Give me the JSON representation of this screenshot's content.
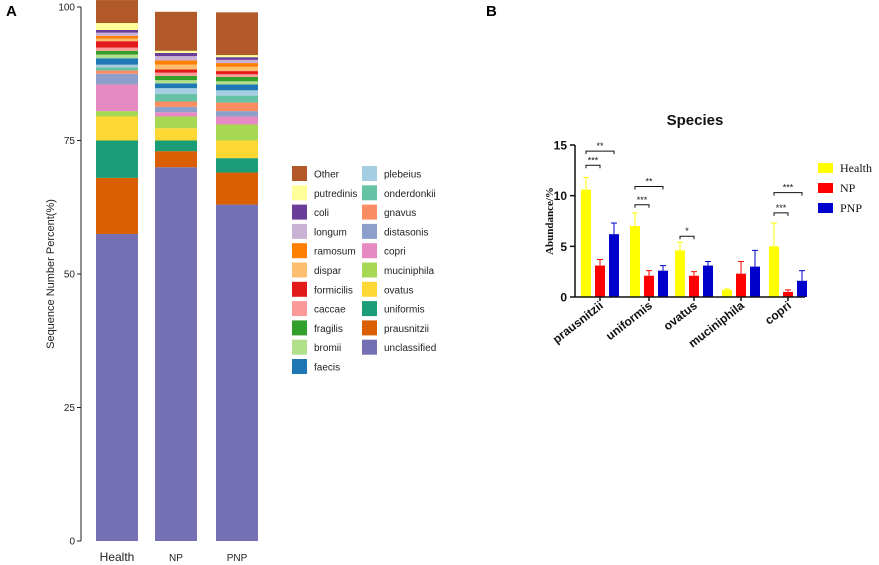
{
  "panel_labels": [
    "A",
    "B"
  ],
  "chart_data": [
    {
      "type": "bar",
      "stacked": true,
      "ylabel": "Sequence Number Percent(%)",
      "ylim": [
        0,
        100
      ],
      "yticks": [
        0,
        25,
        50,
        75,
        100
      ],
      "categories": [
        "Health",
        "NP",
        "PNP"
      ],
      "series": [
        {
          "name": "unclassified",
          "color": "#7570b3",
          "values": [
            57.5,
            70.0,
            63.0
          ]
        },
        {
          "name": "prausnitzii",
          "color": "#d95f02",
          "values": [
            10.5,
            3.0,
            6.0
          ]
        },
        {
          "name": "uniformis",
          "color": "#1b9e77",
          "values": [
            7.0,
            2.0,
            2.7
          ]
        },
        {
          "name": "ovatus",
          "color": "#fdd835",
          "values": [
            4.5,
            2.3,
            3.3
          ]
        },
        {
          "name": "muciniphila",
          "color": "#a6d854",
          "values": [
            1.0,
            2.2,
            3.0
          ]
        },
        {
          "name": "copri",
          "color": "#e78ac3",
          "values": [
            5.0,
            0.8,
            1.5
          ]
        },
        {
          "name": "distasonis",
          "color": "#8da0cb",
          "values": [
            2.0,
            1.0,
            1.0
          ]
        },
        {
          "name": "gnavus",
          "color": "#fc8d62",
          "values": [
            0.6,
            1.0,
            1.6
          ]
        },
        {
          "name": "onderdonkii",
          "color": "#66c2a5",
          "values": [
            0.6,
            1.4,
            1.3
          ]
        },
        {
          "name": "plebeius",
          "color": "#a6cee3",
          "values": [
            0.5,
            1.1,
            1.0
          ]
        },
        {
          "name": "faecis",
          "color": "#1f78b4",
          "values": [
            1.2,
            0.9,
            1.1
          ]
        },
        {
          "name": "bromii",
          "color": "#b2df8a",
          "values": [
            0.7,
            0.6,
            0.6
          ]
        },
        {
          "name": "fragilis",
          "color": "#33a02c",
          "values": [
            0.7,
            0.8,
            0.8
          ]
        },
        {
          "name": "caccae",
          "color": "#fb9a99",
          "values": [
            0.6,
            0.6,
            0.5
          ]
        },
        {
          "name": "formicilis",
          "color": "#e31a1c",
          "values": [
            1.2,
            0.6,
            0.6
          ]
        },
        {
          "name": "dispar",
          "color": "#fdbf6f",
          "values": [
            0.5,
            0.9,
            0.8
          ]
        },
        {
          "name": "ramosum",
          "color": "#ff7f00",
          "values": [
            0.5,
            0.8,
            0.7
          ]
        },
        {
          "name": "longum",
          "color": "#cab2d6",
          "values": [
            0.6,
            0.8,
            0.6
          ]
        },
        {
          "name": "coli",
          "color": "#6a3d9a",
          "values": [
            0.5,
            0.6,
            0.5
          ]
        },
        {
          "name": "putredinis",
          "color": "#ffff99",
          "values": [
            1.3,
            0.4,
            0.4
          ]
        },
        {
          "name": "Other",
          "color": "#b15928",
          "values": [
            4.3,
            7.3,
            8.0
          ]
        }
      ],
      "legend_order": [
        "Other",
        "putredinis",
        "coli",
        "longum",
        "ramosum",
        "dispar",
        "formicilis",
        "caccae",
        "fragilis",
        "bromii",
        "faecis",
        "plebeius",
        "onderdonkii",
        "gnavus",
        "distasonis",
        "copri",
        "muciniphila",
        "ovatus",
        "uniformis",
        "prausnitzii",
        "unclassified"
      ],
      "legend_position": "right"
    },
    {
      "type": "bar",
      "title": "Species",
      "ylabel": "Abundance/%",
      "ylim": [
        0,
        15
      ],
      "yticks": [
        0,
        5,
        10,
        15
      ],
      "categories": [
        "prausnitzii",
        "uniformis",
        "ovatus",
        "muciniphila",
        "copri"
      ],
      "series": [
        {
          "name": "Health",
          "color": "#ffff00",
          "values": [
            10.6,
            7.0,
            4.6,
            0.7,
            5.0
          ],
          "errors": [
            1.2,
            1.3,
            0.8,
            0.1,
            2.3
          ]
        },
        {
          "name": "NP",
          "color": "#ff0000",
          "values": [
            3.1,
            2.1,
            2.1,
            2.3,
            0.5
          ],
          "errors": [
            0.6,
            0.5,
            0.4,
            1.2,
            0.2
          ]
        },
        {
          "name": "PNP",
          "color": "#0000cc",
          "values": [
            6.2,
            2.6,
            3.1,
            3.0,
            1.6
          ],
          "errors": [
            1.1,
            0.5,
            0.4,
            1.6,
            1.0
          ]
        }
      ],
      "significance": [
        {
          "category": 0,
          "from": "Health",
          "to": "NP",
          "label": "***",
          "y": 13.0
        },
        {
          "category": 0,
          "from": "Health",
          "to": "PNP",
          "label": "**",
          "y": 14.4
        },
        {
          "category": 1,
          "from": "Health",
          "to": "NP",
          "label": "***",
          "y": 9.1
        },
        {
          "category": 1,
          "from": "Health",
          "to": "PNP",
          "label": "**",
          "y": 10.9
        },
        {
          "category": 2,
          "from": "Health",
          "to": "NP",
          "label": "*",
          "y": 6.0
        },
        {
          "category": 4,
          "from": "Health",
          "to": "NP",
          "label": "***",
          "y": 8.3
        },
        {
          "category": 4,
          "from": "Health",
          "to": "PNP",
          "label": "***",
          "y": 10.3
        }
      ],
      "legend_position": "right"
    }
  ]
}
